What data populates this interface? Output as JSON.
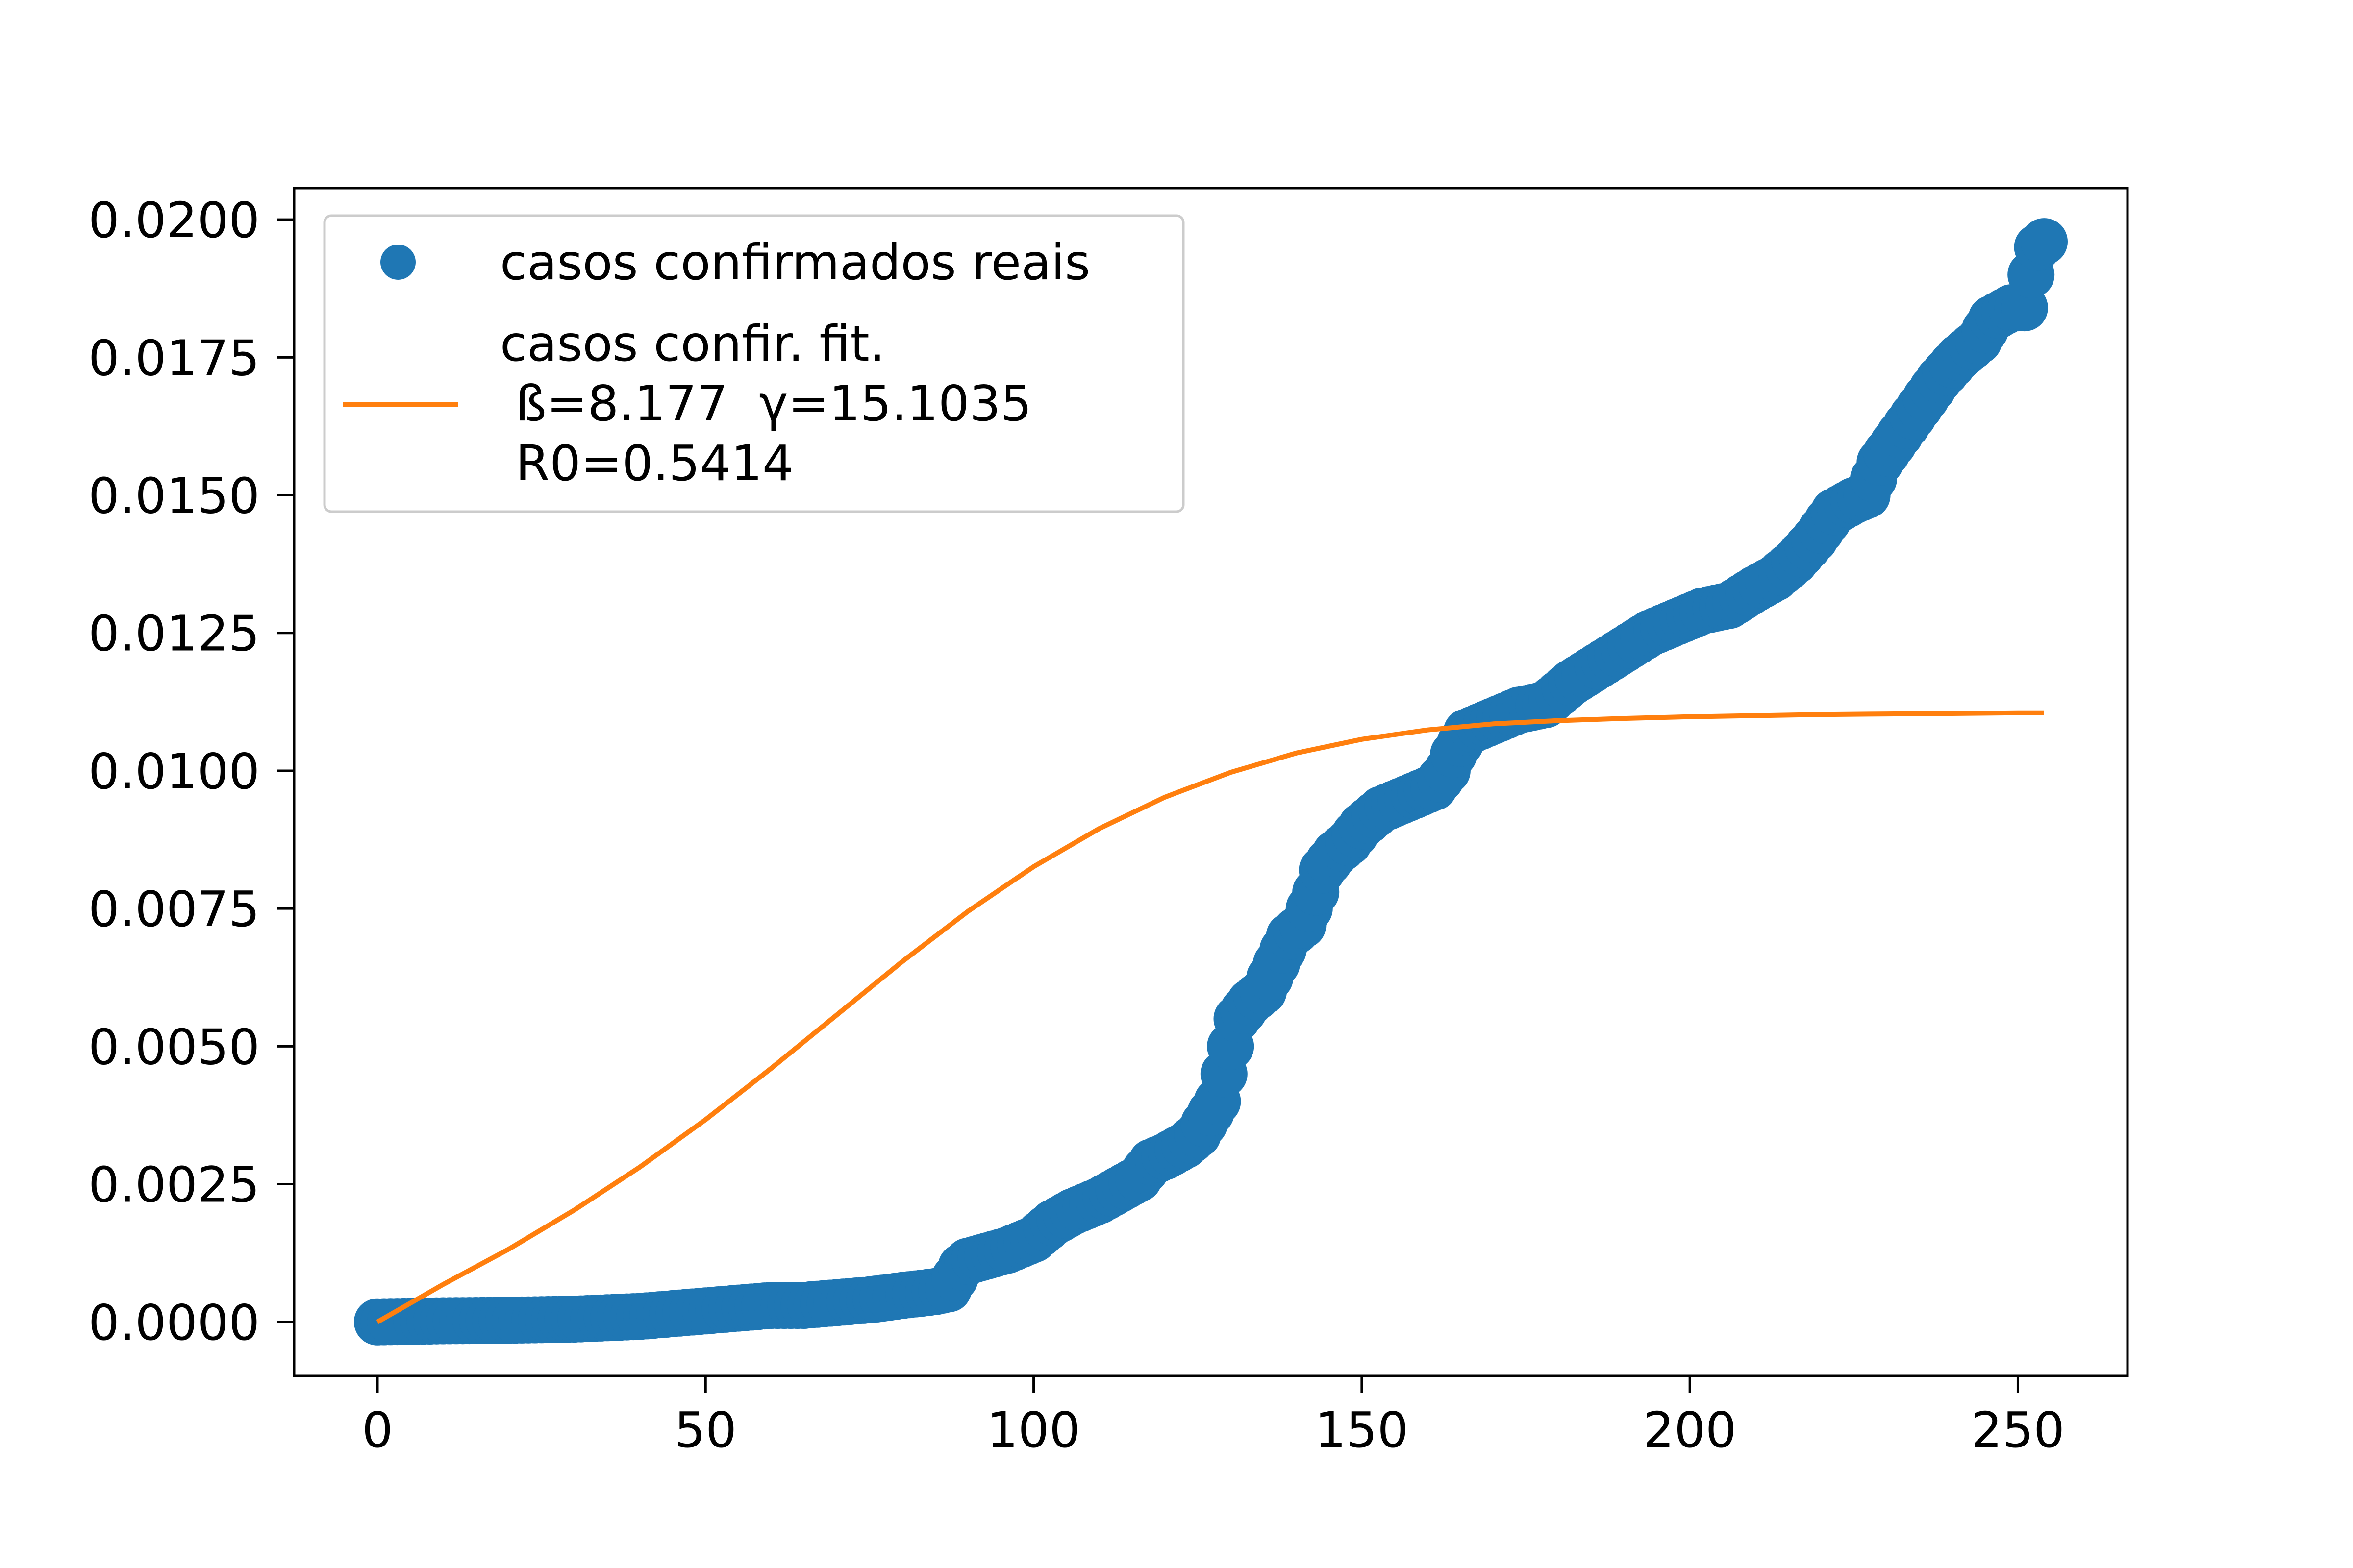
{
  "chart_data": {
    "type": "line",
    "title": "",
    "xlabel": "",
    "ylabel": "",
    "xlim": [
      -12.7,
      266.7
    ],
    "ylim": [
      -0.00098,
      0.02057
    ],
    "x_ticks": [
      0,
      50,
      100,
      150,
      200,
      250
    ],
    "y_ticks": [
      0.0,
      0.0025,
      0.005,
      0.0075,
      0.01,
      0.0125,
      0.015,
      0.0175,
      0.02
    ],
    "x_tick_labels": [
      "0",
      "50",
      "100",
      "150",
      "200",
      "250"
    ],
    "y_tick_labels": [
      "0.0000",
      "0.0025",
      "0.0050",
      "0.0075",
      "0.0100",
      "0.0125",
      "0.0150",
      "0.0175",
      "0.0200"
    ],
    "grid": false,
    "legend_position": "top-left",
    "series": [
      {
        "name": "casos confirmados reais",
        "style": "markers",
        "color": "#1f77b4",
        "points": [
          [
            0,
            0.0
          ],
          [
            10,
            2e-05
          ],
          [
            20,
            3e-05
          ],
          [
            30,
            5e-05
          ],
          [
            40,
            0.0001
          ],
          [
            45,
            0.00015
          ],
          [
            50,
            0.0002
          ],
          [
            55,
            0.00025
          ],
          [
            60,
            0.0003
          ],
          [
            65,
            0.0003
          ],
          [
            70,
            0.00035
          ],
          [
            75,
            0.0004
          ],
          [
            80,
            0.00048
          ],
          [
            85,
            0.00055
          ],
          [
            87,
            0.0006
          ],
          [
            88,
            0.0008
          ],
          [
            89,
            0.001
          ],
          [
            90,
            0.0011
          ],
          [
            93,
            0.0012
          ],
          [
            96,
            0.0013
          ],
          [
            100,
            0.0015
          ],
          [
            103,
            0.0018
          ],
          [
            106,
            0.002
          ],
          [
            110,
            0.0022
          ],
          [
            113,
            0.0024
          ],
          [
            116,
            0.0026
          ],
          [
            118,
            0.0029
          ],
          [
            120,
            0.003
          ],
          [
            123,
            0.0032
          ],
          [
            125,
            0.0034
          ],
          [
            127,
            0.0038
          ],
          [
            128,
            0.004
          ],
          [
            129,
            0.0045
          ],
          [
            130,
            0.005
          ],
          [
            131,
            0.0055
          ],
          [
            133,
            0.0058
          ],
          [
            135,
            0.006
          ],
          [
            137,
            0.0065
          ],
          [
            139,
            0.007
          ],
          [
            141,
            0.0072
          ],
          [
            143,
            0.0078
          ],
          [
            144,
            0.0082
          ],
          [
            146,
            0.0085
          ],
          [
            148,
            0.0087
          ],
          [
            150,
            0.009
          ],
          [
            153,
            0.0093
          ],
          [
            157,
            0.0095
          ],
          [
            161,
            0.0097
          ],
          [
            163,
            0.01
          ],
          [
            164,
            0.0103
          ],
          [
            166,
            0.0107
          ],
          [
            170,
            0.0109
          ],
          [
            174,
            0.0111
          ],
          [
            178,
            0.0112
          ],
          [
            182,
            0.0116
          ],
          [
            186,
            0.0119
          ],
          [
            190,
            0.0122
          ],
          [
            194,
            0.0125
          ],
          [
            198,
            0.0127
          ],
          [
            202,
            0.0129
          ],
          [
            206,
            0.013
          ],
          [
            210,
            0.0133
          ],
          [
            213,
            0.0135
          ],
          [
            216,
            0.0138
          ],
          [
            219,
            0.0142
          ],
          [
            222,
            0.0147
          ],
          [
            225,
            0.0149
          ],
          [
            227,
            0.015
          ],
          [
            229,
            0.0156
          ],
          [
            232,
            0.0161
          ],
          [
            235,
            0.0166
          ],
          [
            238,
            0.0171
          ],
          [
            241,
            0.0175
          ],
          [
            244,
            0.0178
          ],
          [
            246,
            0.0182
          ],
          [
            249,
            0.0184
          ],
          [
            251,
            0.0184
          ],
          [
            252,
            0.019
          ],
          [
            253,
            0.0195
          ],
          [
            254,
            0.0196
          ]
        ]
      },
      {
        "name": "casos confir. fit.\n ß=8.177  γ=15.1035\n R0=0.5414",
        "style": "line",
        "color": "#ff7f0e",
        "points": [
          [
            0,
            0.0
          ],
          [
            10,
            0.00068
          ],
          [
            20,
            0.00132
          ],
          [
            30,
            0.00203
          ],
          [
            40,
            0.00281
          ],
          [
            50,
            0.00367
          ],
          [
            60,
            0.0046
          ],
          [
            70,
            0.00557
          ],
          [
            80,
            0.00654
          ],
          [
            90,
            0.00745
          ],
          [
            100,
            0.00826
          ],
          [
            110,
            0.00895
          ],
          [
            120,
            0.00952
          ],
          [
            130,
            0.00997
          ],
          [
            140,
            0.01032
          ],
          [
            150,
            0.01057
          ],
          [
            160,
            0.01074
          ],
          [
            170,
            0.01085
          ],
          [
            180,
            0.01091
          ],
          [
            190,
            0.01095
          ],
          [
            200,
            0.01098
          ],
          [
            210,
            0.011
          ],
          [
            220,
            0.01102
          ],
          [
            230,
            0.01103
          ],
          [
            240,
            0.01104
          ],
          [
            250,
            0.01105
          ],
          [
            254,
            0.01105
          ]
        ]
      }
    ]
  }
}
